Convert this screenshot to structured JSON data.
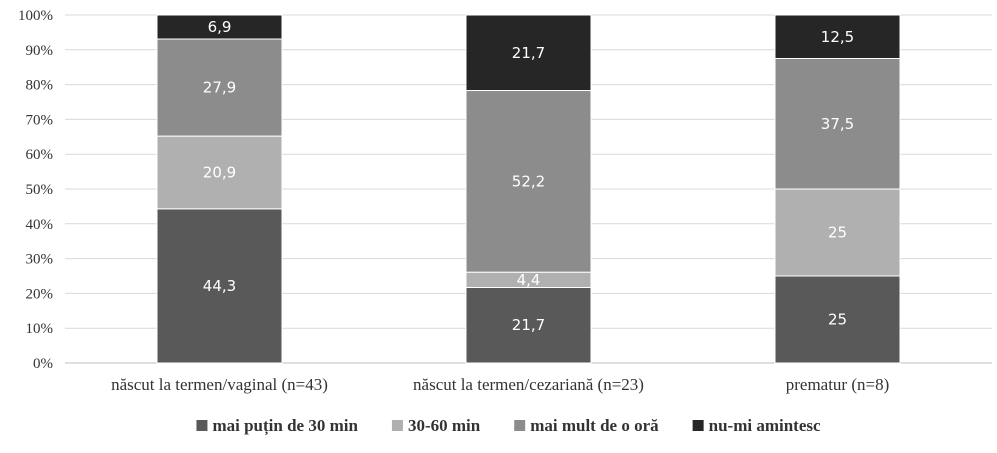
{
  "chart_data": {
    "type": "bar",
    "stacked": true,
    "categories": [
      "născut la termen/vaginal (n=43)",
      "născut la termen/cezariană (n=23)",
      "prematur (n=8)"
    ],
    "series": [
      {
        "name": "mai puțin de 30 min",
        "color": "#595959",
        "values": [
          44.3,
          21.7,
          25
        ],
        "labels": [
          "44,3",
          "21,7",
          "25"
        ]
      },
      {
        "name": "30-60 min",
        "color": "#b0b0b0",
        "values": [
          20.9,
          4.4,
          25
        ],
        "labels": [
          "20,9",
          "4,4",
          "25"
        ]
      },
      {
        "name": "mai mult de o oră",
        "color": "#8c8c8c",
        "values": [
          27.9,
          52.2,
          37.5
        ],
        "labels": [
          "27,9",
          "52,2",
          "37,5"
        ]
      },
      {
        "name": "nu-mi amintesc",
        "color": "#262626",
        "values": [
          6.9,
          21.7,
          12.5
        ],
        "labels": [
          "6,9",
          "21,7",
          "12,5"
        ]
      }
    ],
    "yticks": [
      "0%",
      "10%",
      "20%",
      "30%",
      "40%",
      "50%",
      "60%",
      "70%",
      "80%",
      "90%",
      "100%"
    ],
    "ylim": [
      0,
      100
    ],
    "grid": true,
    "legend_position": "bottom"
  }
}
